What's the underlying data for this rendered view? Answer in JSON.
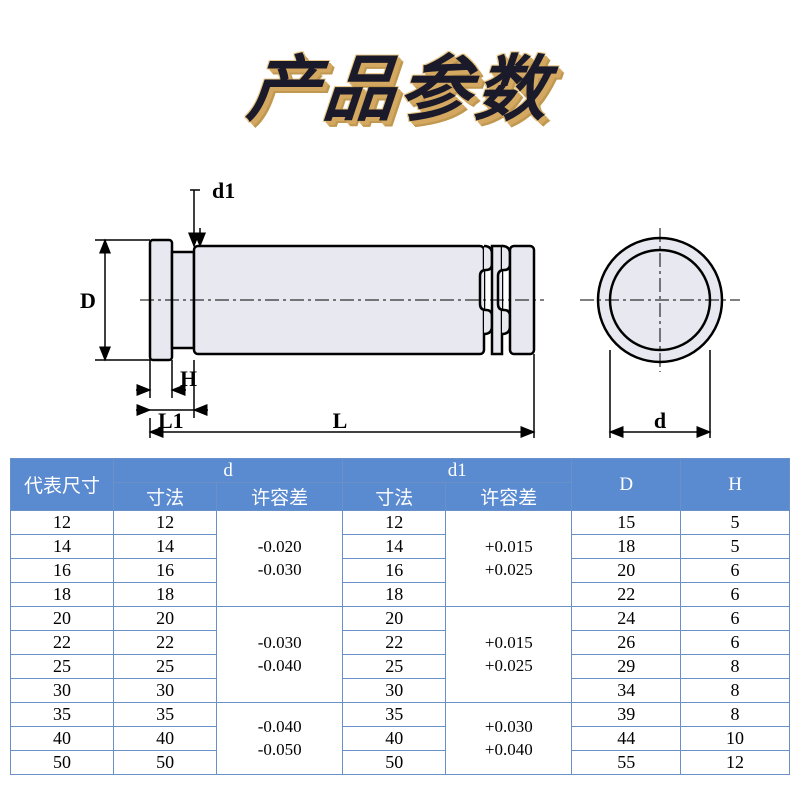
{
  "title": "产品参数",
  "diagram": {
    "labels": {
      "D": "D",
      "H": "H",
      "L1": "L1",
      "L": "L",
      "d1": "d1",
      "d": "d"
    },
    "stroke_color": "#000000",
    "fill_light": "#e8e8f0"
  },
  "table": {
    "header_bg": "#5a8acf",
    "header_fg": "#ffffff",
    "border_color": "#6a90c8",
    "columns": {
      "size": "代表尺寸",
      "d": "d",
      "d_sub1": "寸法",
      "d_sub2": "许容差",
      "d1": "d1",
      "d1_sub1": "寸法",
      "d1_sub2": "许容差",
      "D": "D",
      "H": "H"
    },
    "groups": [
      {
        "tol_d": [
          "-0.020",
          "-0.030"
        ],
        "tol_d1": [
          "+0.015",
          "+0.025"
        ],
        "rows": [
          {
            "size": "12",
            "d": "12",
            "d1": "12",
            "D": "15",
            "H": "5"
          },
          {
            "size": "14",
            "d": "14",
            "d1": "14",
            "D": "18",
            "H": "5"
          },
          {
            "size": "16",
            "d": "16",
            "d1": "16",
            "D": "20",
            "H": "6"
          },
          {
            "size": "18",
            "d": "18",
            "d1": "18",
            "D": "22",
            "H": "6"
          }
        ]
      },
      {
        "tol_d": [
          "-0.030",
          "-0.040"
        ],
        "tol_d1": [
          "+0.015",
          "+0.025"
        ],
        "rows": [
          {
            "size": "20",
            "d": "20",
            "d1": "20",
            "D": "24",
            "H": "6"
          },
          {
            "size": "22",
            "d": "22",
            "d1": "22",
            "D": "26",
            "H": "6"
          },
          {
            "size": "25",
            "d": "25",
            "d1": "25",
            "D": "29",
            "H": "8"
          },
          {
            "size": "30",
            "d": "30",
            "d1": "30",
            "D": "34",
            "H": "8"
          }
        ]
      },
      {
        "tol_d": [
          "-0.040",
          "-0.050"
        ],
        "tol_d1": [
          "+0.030",
          "+0.040"
        ],
        "rows": [
          {
            "size": "35",
            "d": "35",
            "d1": "35",
            "D": "39",
            "H": "8"
          },
          {
            "size": "40",
            "d": "40",
            "d1": "40",
            "D": "44",
            "H": "10"
          },
          {
            "size": "50",
            "d": "50",
            "d1": "50",
            "D": "55",
            "H": "12"
          }
        ]
      }
    ]
  }
}
